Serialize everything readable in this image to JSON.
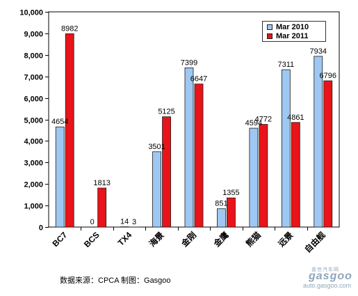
{
  "chart_data": {
    "type": "bar",
    "categories": [
      "BC7",
      "BCS",
      "TX4",
      "海景",
      "金刚",
      "金鹰",
      "熊猫",
      "远景",
      "自由舰"
    ],
    "series": [
      {
        "name": "Mar 2010",
        "values": [
          4654,
          0,
          14,
          3501,
          7399,
          851,
          4594,
          7311,
          7934
        ],
        "color": "#9ec8f2"
      },
      {
        "name": "Mar 2011",
        "values": [
          8982,
          1813,
          3,
          5125,
          6647,
          1355,
          4772,
          4861,
          6796
        ],
        "color": "#e8141a"
      }
    ],
    "y_ticks": [
      "0",
      "1,000",
      "2,000",
      "3,000",
      "4,000",
      "5,000",
      "6,000",
      "7,000",
      "8,000",
      "9,000",
      "10,000"
    ],
    "ylim": [
      0,
      10000
    ],
    "title": "",
    "xlabel": "",
    "ylabel": "",
    "grid": false,
    "legend_position": "top-right"
  },
  "footer": {
    "source": "数据来源：CPCA  制图：Gasgoo"
  },
  "watermark": {
    "top": "盖世汽车网",
    "logo": "gasgoo",
    "url": "auto.gasgoo.com"
  }
}
